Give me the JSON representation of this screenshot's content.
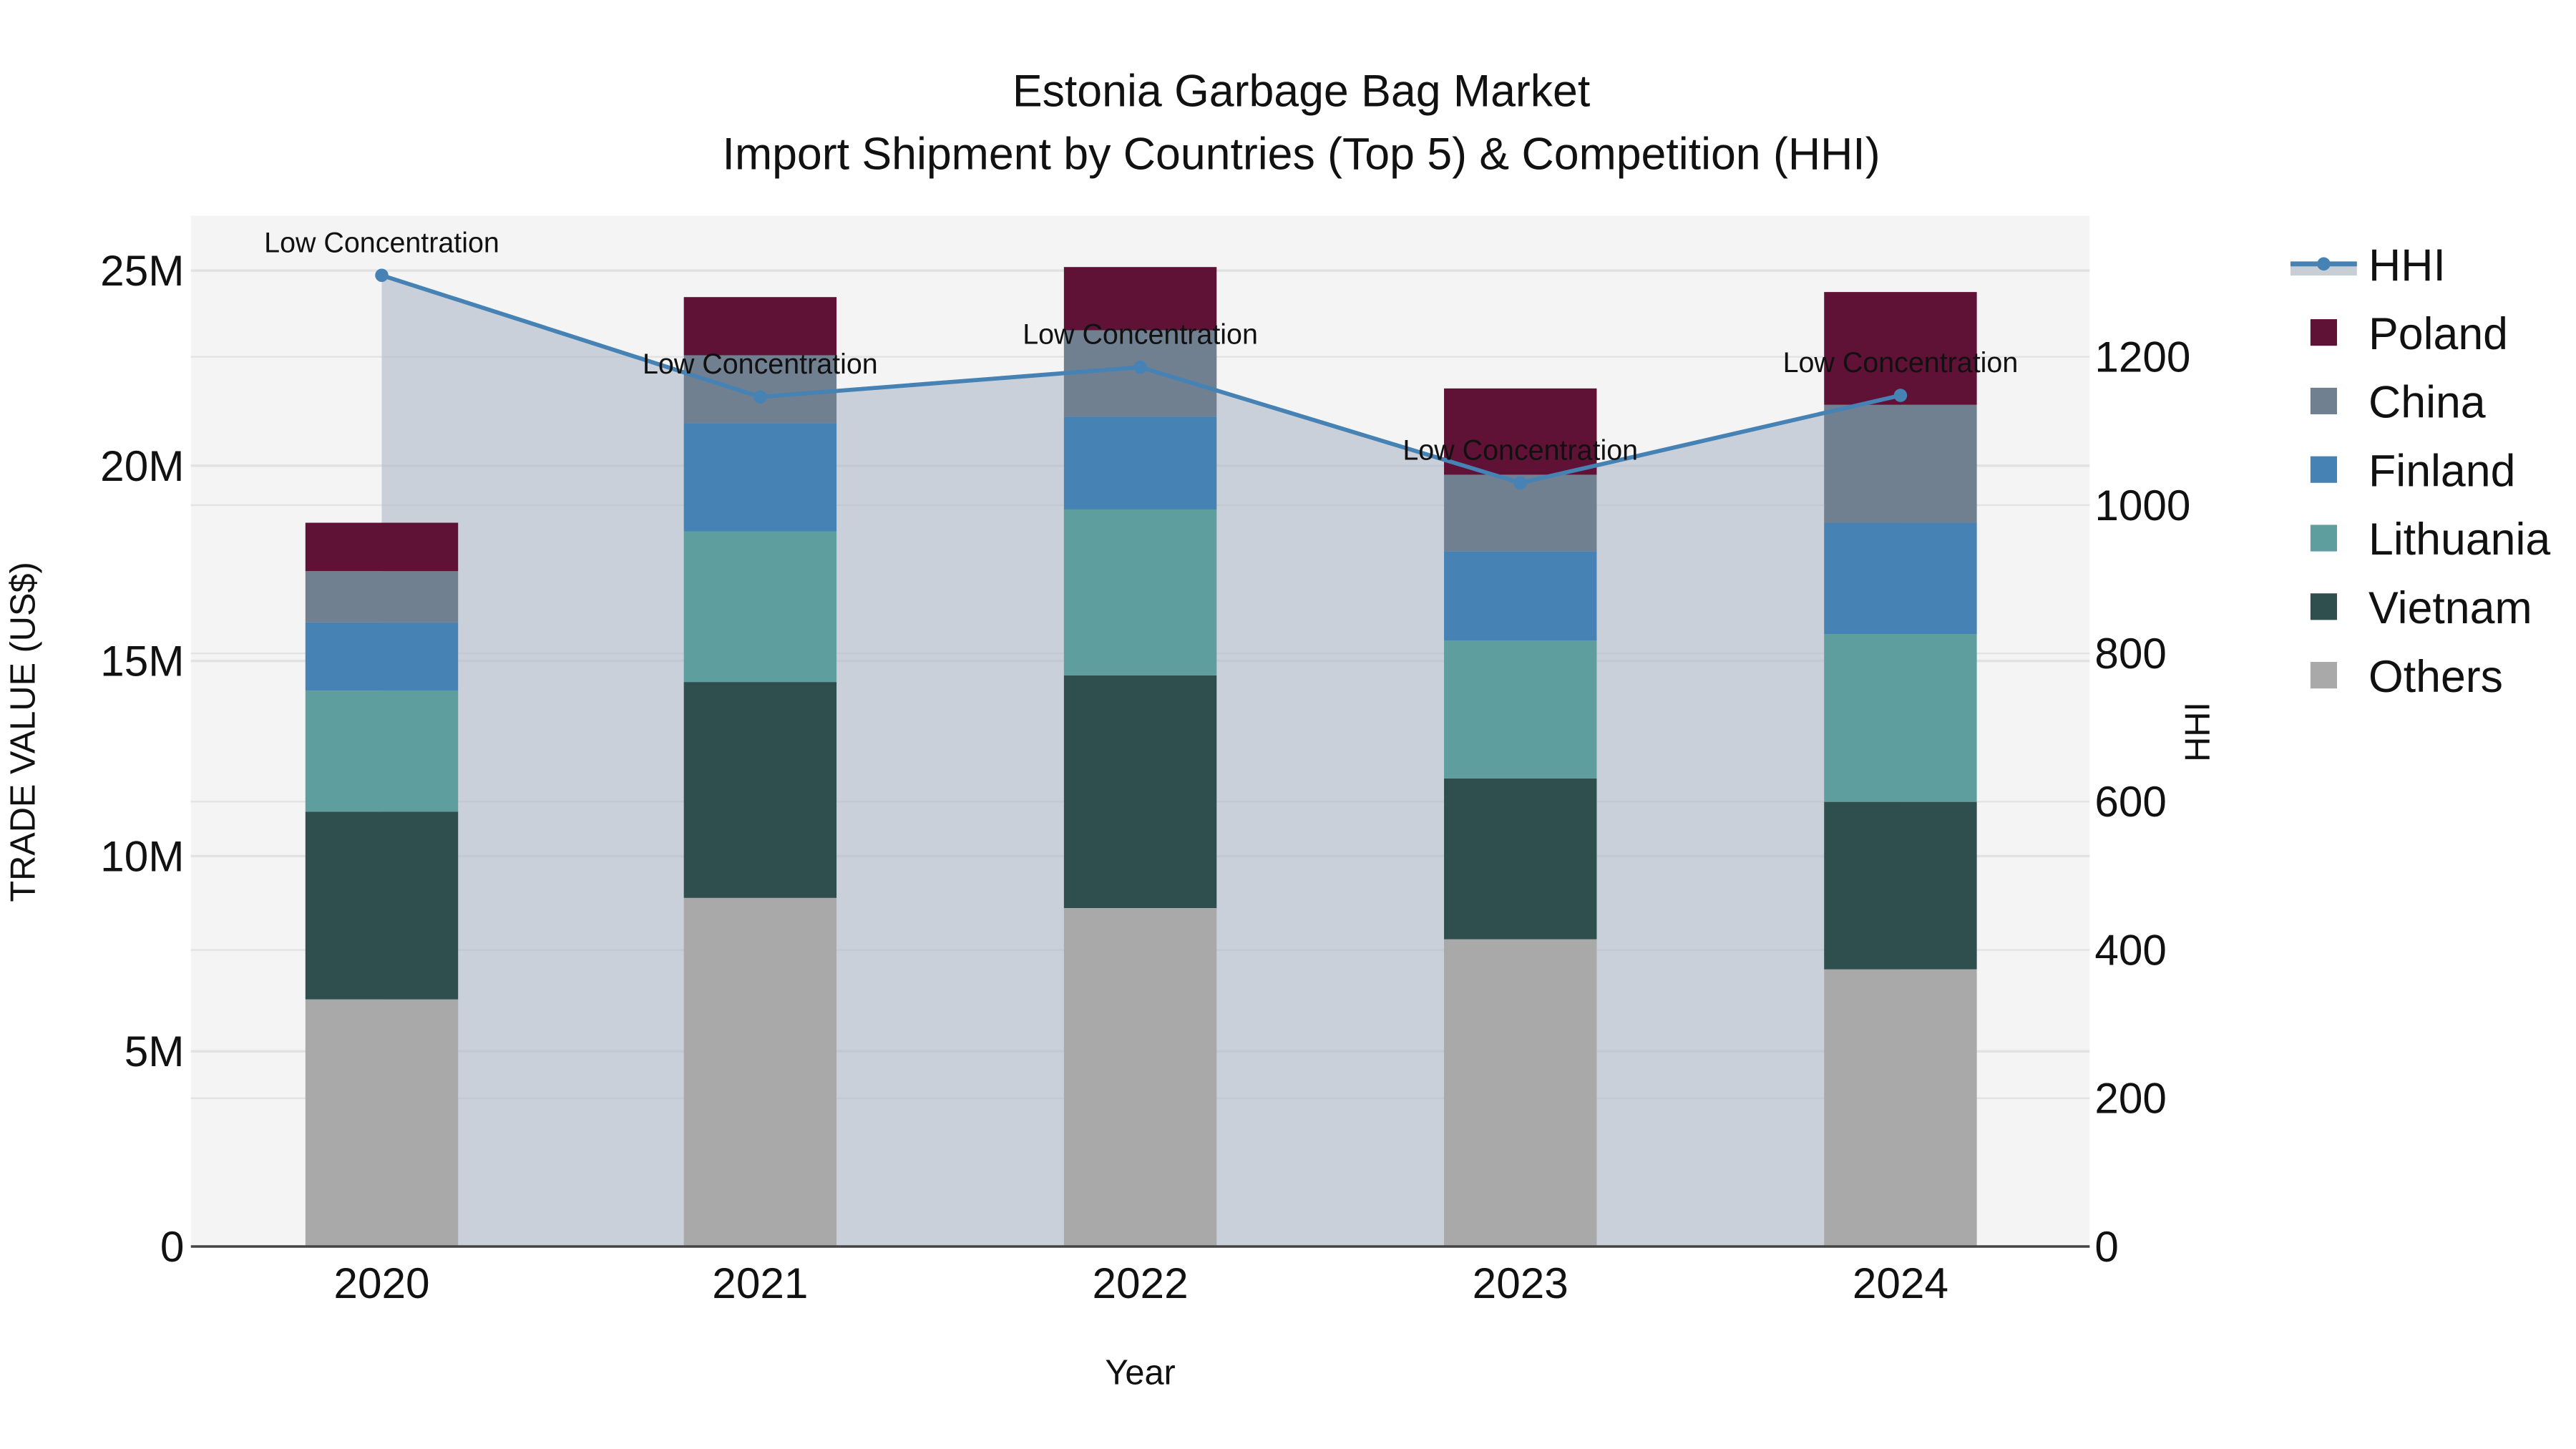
{
  "title": {
    "line1": "Estonia Garbage Bag Market",
    "line2": "Import Shipment by Countries (Top 5) & Competition (HHI)"
  },
  "axes": {
    "xlabel": "Year",
    "ylabel": "TRADE VALUE (US$)",
    "y2label": "HHI",
    "y_ticks": [
      "0",
      "5M",
      "10M",
      "15M",
      "20M",
      "25M"
    ],
    "y2_ticks": [
      "0",
      "200",
      "400",
      "600",
      "800",
      "1000",
      "1200"
    ]
  },
  "legend": [
    {
      "name": "HHI",
      "type": "line",
      "color": "#4682b4"
    },
    {
      "name": "Poland",
      "type": "bar",
      "color": "#5f1236"
    },
    {
      "name": "China",
      "type": "bar",
      "color": "#708090"
    },
    {
      "name": "Finland",
      "type": "bar",
      "color": "#4682b4"
    },
    {
      "name": "Lithuania",
      "type": "bar",
      "color": "#5f9e9e"
    },
    {
      "name": "Vietnam",
      "type": "bar",
      "color": "#2f4f4f"
    },
    {
      "name": "Others",
      "type": "bar",
      "color": "#a9a9a9"
    }
  ],
  "annotation_label": "Low Concentration",
  "chart_data": {
    "type": "bar",
    "stacked": true,
    "title": "Estonia Garbage Bag Market — Import Shipment by Countries (Top 5) & Competition (HHI)",
    "xlabel": "Year",
    "ylabel": "TRADE VALUE (US$)",
    "y2label": "HHI",
    "ylim": [
      0,
      26400000
    ],
    "y2lim": [
      0,
      1430
    ],
    "categories": [
      "2020",
      "2021",
      "2022",
      "2023",
      "2024"
    ],
    "series": [
      {
        "name": "Others",
        "color": "#a9a9a9",
        "values": [
          6330000,
          8930000,
          8670000,
          7870000,
          7100000
        ]
      },
      {
        "name": "Vietnam",
        "color": "#2f4f4f",
        "values": [
          4810000,
          5530000,
          5960000,
          4120000,
          4290000
        ]
      },
      {
        "name": "Lithuania",
        "color": "#5f9e9e",
        "values": [
          3100000,
          3860000,
          4250000,
          3530000,
          4300000
        ]
      },
      {
        "name": "Finland",
        "color": "#4682b4",
        "values": [
          1750000,
          2770000,
          2380000,
          2290000,
          2850000
        ]
      },
      {
        "name": "China",
        "color": "#708090",
        "values": [
          1310000,
          1740000,
          2210000,
          1960000,
          3020000
        ]
      },
      {
        "name": "Poland",
        "color": "#5f1236",
        "values": [
          1240000,
          1490000,
          1620000,
          2210000,
          2890000
        ]
      }
    ],
    "line_series": {
      "name": "HHI",
      "axis": "y2",
      "color": "#4682b4",
      "fill": "tozeroy",
      "values": [
        1310,
        1146,
        1186,
        1030,
        1148
      ],
      "annotations": [
        "Low Concentration",
        "Low Concentration",
        "Low Concentration",
        "Low Concentration",
        "Low Concentration"
      ]
    },
    "grid": true,
    "legend_position": "right"
  }
}
